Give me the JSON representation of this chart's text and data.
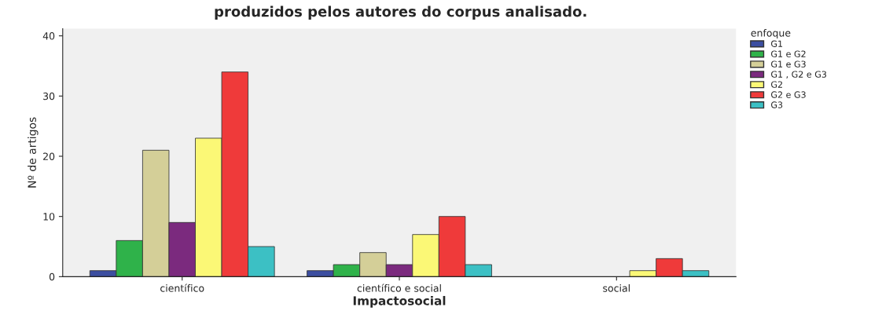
{
  "chart_data": {
    "type": "bar",
    "title": "produzidos pelos autores do corpus analisado.",
    "xlabel": "Impactosocial",
    "ylabel": "Nº de artigos",
    "legend_title": "enfoque",
    "categories": [
      "científico",
      "científico e social",
      "social"
    ],
    "series": [
      {
        "name": "G1",
        "color": "#3c4ea0",
        "values": [
          1,
          1,
          null
        ]
      },
      {
        "name": "G1 e G2",
        "color": "#2fb24a",
        "values": [
          6,
          2,
          null
        ]
      },
      {
        "name": "G1 e G3",
        "color": "#d4cf98",
        "values": [
          21,
          4,
          null
        ]
      },
      {
        "name": "G1 , G2 e G3",
        "color": "#7b2a7e",
        "values": [
          9,
          2,
          null
        ]
      },
      {
        "name": "G2",
        "color": "#fbf876",
        "values": [
          23,
          7,
          1
        ]
      },
      {
        "name": "G2 e G3",
        "color": "#ef3a3a",
        "values": [
          34,
          10,
          3
        ]
      },
      {
        "name": "G3",
        "color": "#3cc0c4",
        "values": [
          5,
          2,
          1
        ]
      }
    ],
    "ylim": [
      0,
      41.2
    ],
    "yticks": [
      0,
      10,
      20,
      30,
      40
    ],
    "grid": false,
    "legend": "top right"
  }
}
